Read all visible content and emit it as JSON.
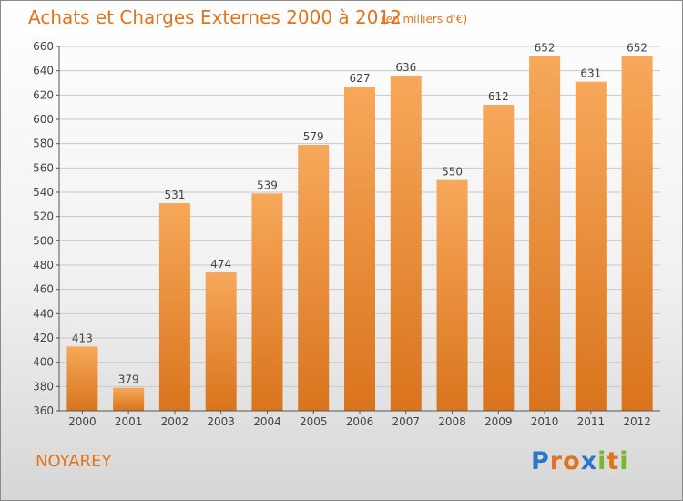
{
  "header": {
    "title": "Achats et Charges Externes 2000 à 2012",
    "subtitle": "(en milliers d'€)"
  },
  "footer": {
    "commune": "NOYAREY",
    "logo": "Proxiti",
    "logo_colors": [
      "#2a77c9",
      "#e0741c",
      "#e0741c",
      "#2a77c9",
      "#7ab829",
      "#e0741c",
      "#7ab829"
    ]
  },
  "colors": {
    "bar_light": "#f7a85a",
    "bar_dark": "#d9741d",
    "text": "#e0741c",
    "grid": "#c8c8c8"
  },
  "chart_data": {
    "type": "bar",
    "title": "Achats et Charges Externes 2000 à 2012",
    "subtitle": "(en milliers d'€)",
    "categories": [
      "2000",
      "2001",
      "2002",
      "2003",
      "2004",
      "2005",
      "2006",
      "2007",
      "2008",
      "2009",
      "2010",
      "2011",
      "2012"
    ],
    "values": [
      413,
      379,
      531,
      474,
      539,
      579,
      627,
      636,
      550,
      612,
      652,
      631,
      652
    ],
    "ylim": [
      360,
      660
    ],
    "yticks": [
      360,
      380,
      400,
      420,
      440,
      460,
      480,
      500,
      520,
      540,
      560,
      580,
      600,
      620,
      640,
      660
    ],
    "grid": true
  }
}
